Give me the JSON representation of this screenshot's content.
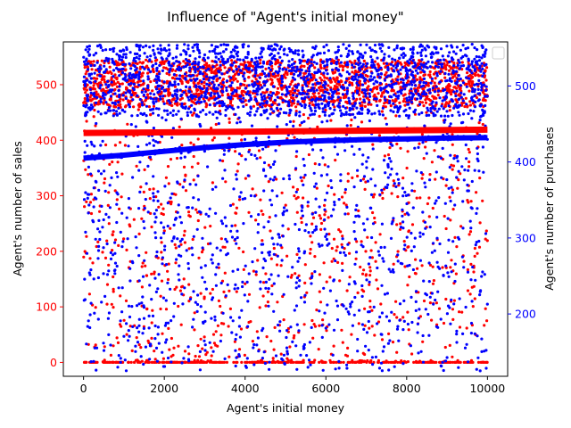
{
  "chart_data": {
    "type": "scatter",
    "title": "Influence of \"Agent's initial money\"",
    "xlabel": "Agent's initial money",
    "xlim": [
      -500,
      10500
    ],
    "x_ticks": [
      0,
      2000,
      4000,
      6000,
      8000,
      10000
    ],
    "y_left": {
      "label": "Agent's number of sales",
      "lim": [
        -25,
        577
      ],
      "ticks": [
        0,
        100,
        200,
        300,
        400,
        500
      ],
      "color": "#ff0000"
    },
    "y_right": {
      "label": "Agent's number of purchases",
      "lim": [
        118,
        558
      ],
      "ticks": [
        200,
        300,
        400,
        500
      ],
      "color": "#0000ff"
    },
    "legend": {
      "position": "top-right",
      "entries": []
    },
    "grid": false,
    "series": [
      {
        "axis": "left",
        "color": "#ff0000",
        "point_count": 3000,
        "dense_band": [
          460,
          545
        ],
        "zero_cluster": 0,
        "sparse_range": [
          0,
          460
        ],
        "trend_line": {
          "x": [
            0,
            10000
          ],
          "y": [
            413,
            419
          ]
        }
      },
      {
        "axis": "right",
        "color": "#0000ff",
        "point_count": 3000,
        "dense_band": [
          460,
          555
        ],
        "sparse_range": [
          125,
          460
        ],
        "trend_curve": {
          "x": [
            0,
            1000,
            2000,
            3000,
            4000,
            5000,
            6000,
            7000,
            8000,
            9000,
            10000
          ],
          "y": [
            405,
            409,
            414,
            419,
            423,
            426,
            428,
            429.5,
            430.5,
            431.5,
            432
          ]
        }
      }
    ]
  }
}
